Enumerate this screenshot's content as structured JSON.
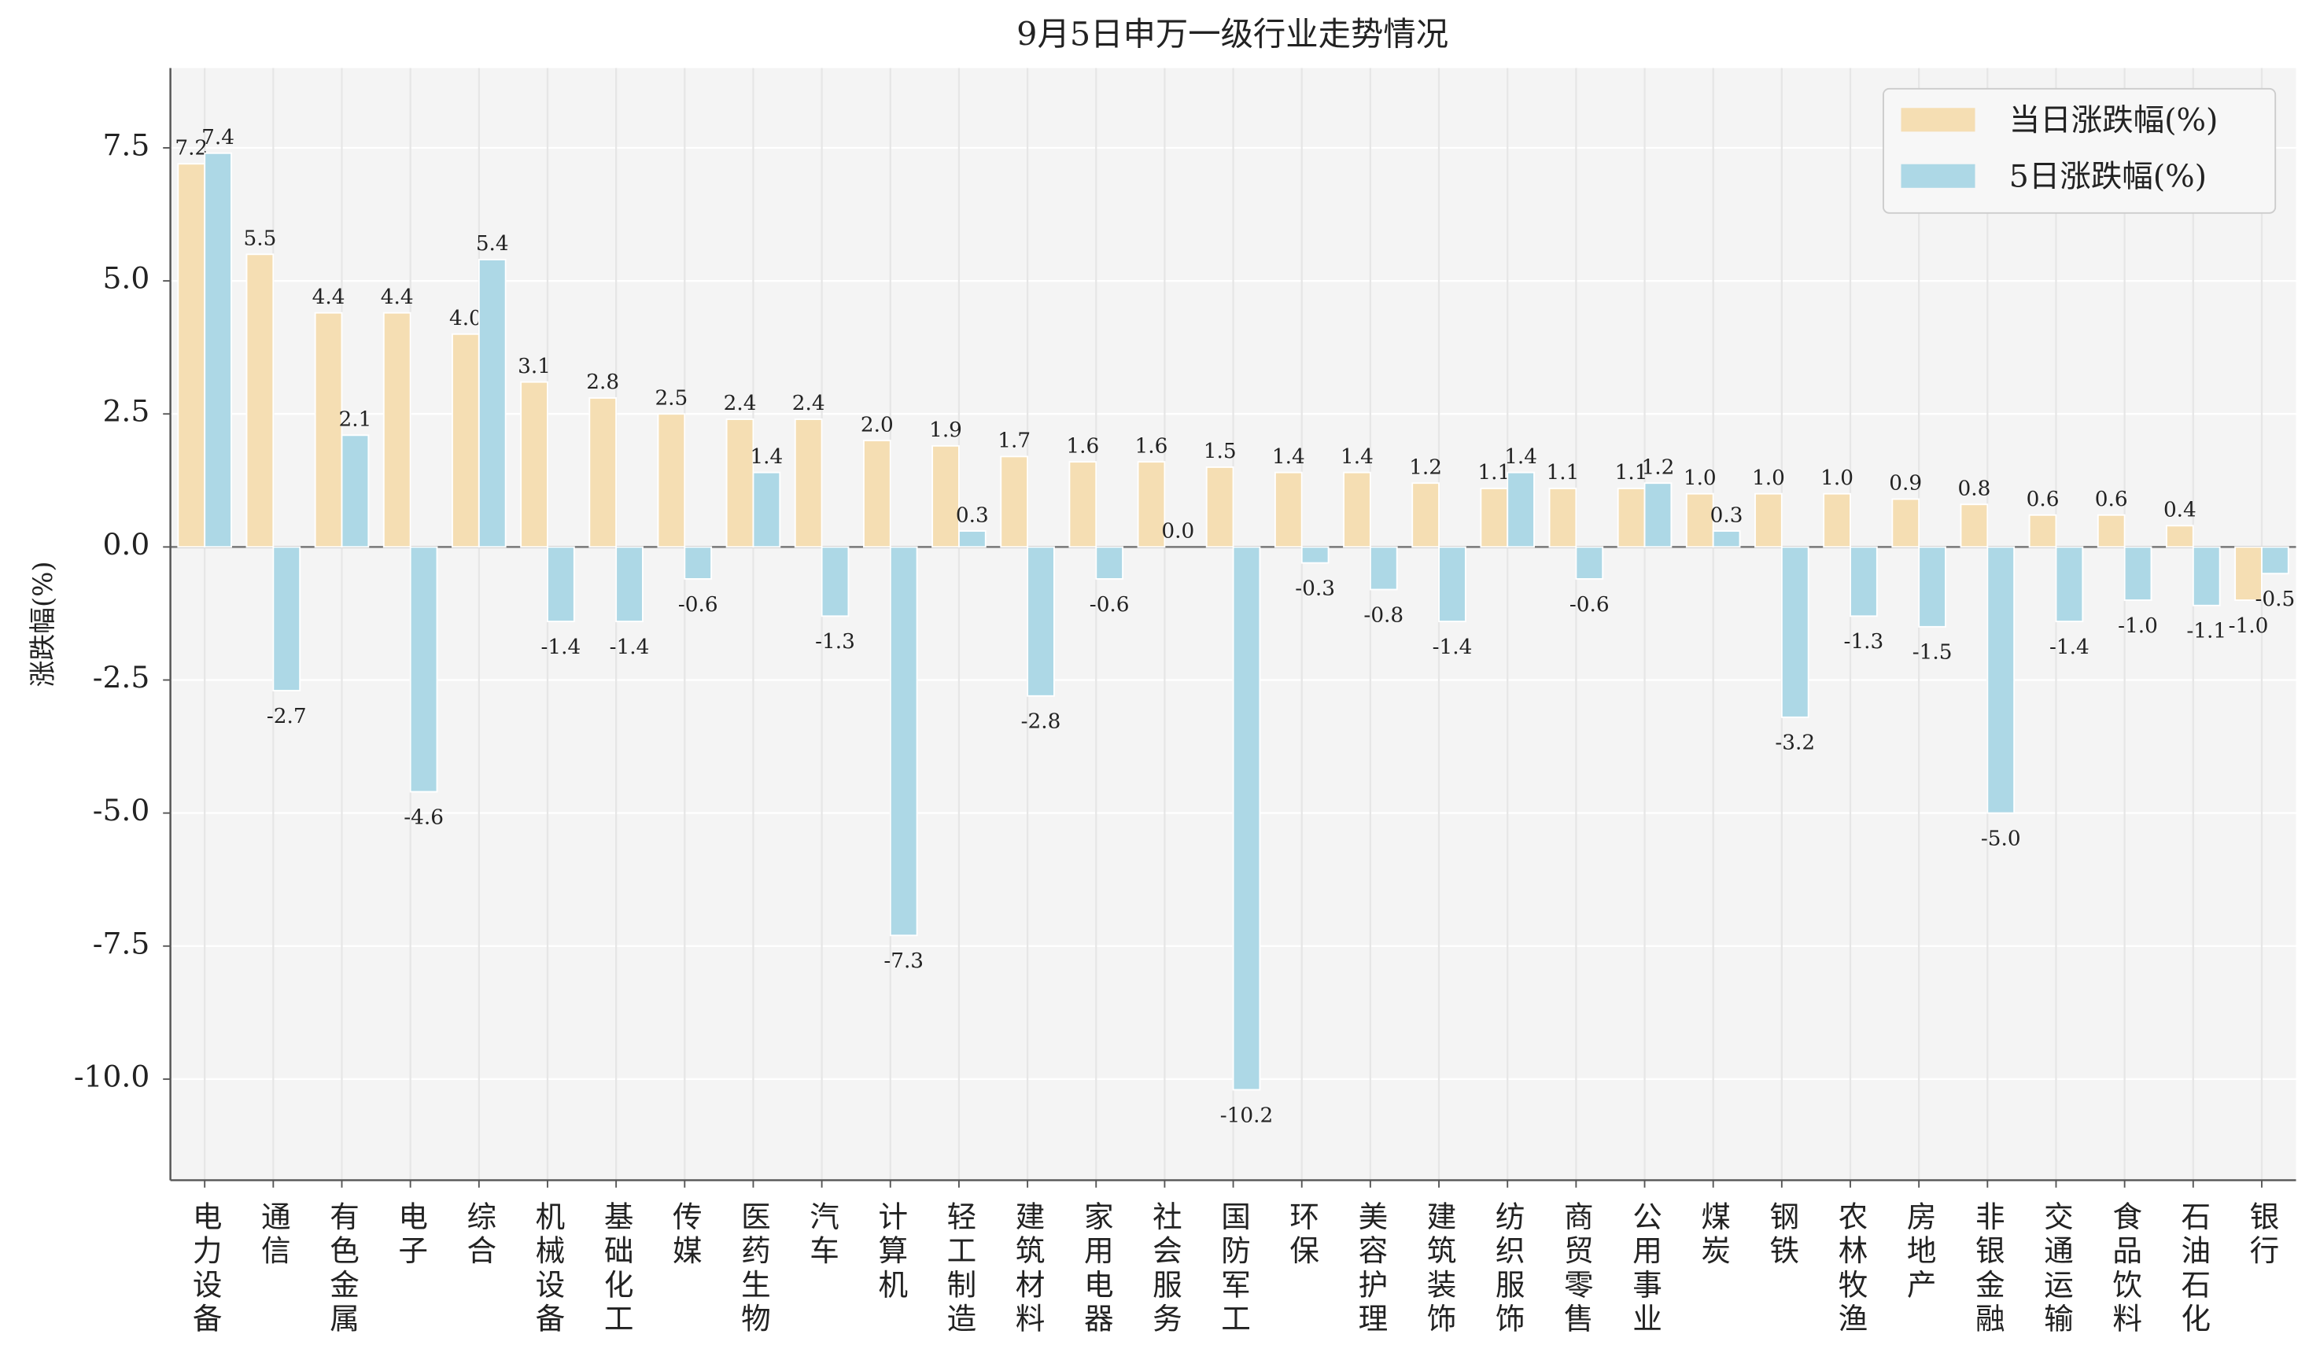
{
  "chart_data": {
    "type": "bar",
    "title": "9月5日申万一级行业走势情况",
    "y_label": "涨跌幅(%)",
    "categories": [
      "电力设备",
      "通信",
      "有色金属",
      "电子",
      "综合",
      "机械设备",
      "基础化工",
      "传媒",
      "医药生物",
      "汽车",
      "计算机",
      "轻工制造",
      "建筑材料",
      "家用电器",
      "社会服务",
      "国防军工",
      "环保",
      "美容护理",
      "建筑装饰",
      "纺织服饰",
      "商贸零售",
      "公用事业",
      "煤炭",
      "钢铁",
      "农林牧渔",
      "房地产",
      "非银金融",
      "交通运输",
      "食品饮料",
      "石油石化",
      "银行"
    ],
    "series": [
      {
        "name": "当日涨跌幅(%)",
        "color": "#f5deb3",
        "values": [
          7.2,
          5.5,
          4.4,
          4.4,
          4.0,
          3.1,
          2.8,
          2.5,
          2.4,
          2.4,
          2.0,
          1.9,
          1.7,
          1.6,
          1.6,
          1.5,
          1.4,
          1.4,
          1.2,
          1.1,
          1.1,
          1.1,
          1.0,
          1.0,
          1.0,
          0.9,
          0.8,
          0.6,
          0.6,
          0.4,
          -1.0
        ],
        "value_labels": [
          "7.2",
          "5.5",
          "4.4",
          "4.4",
          "4.0",
          "3.1",
          "2.8",
          "2.5",
          "2.4",
          "2.4",
          "2.0",
          "1.9",
          "1.7",
          "1.6",
          "1.6",
          "1.5",
          "1.4",
          "1.4",
          "1.2",
          "1.1",
          "1.1",
          "1.1",
          "1.0",
          "1.0",
          "1.0",
          "0.9",
          "0.8",
          "0.6",
          "0.6",
          "0.4",
          "-1.0"
        ]
      },
      {
        "name": "5日涨跌幅(%)",
        "color": "#add8e6",
        "values": [
          7.4,
          -2.7,
          2.1,
          -4.6,
          5.4,
          -1.4,
          -1.4,
          -0.6,
          1.4,
          -1.3,
          -7.3,
          0.3,
          -2.8,
          -0.6,
          0.0,
          -10.2,
          -0.3,
          -0.8,
          -1.4,
          1.4,
          -0.6,
          1.2,
          0.3,
          -3.2,
          -1.3,
          -1.5,
          -5.0,
          -1.4,
          -1.0,
          -1.1,
          -0.5
        ],
        "value_labels": [
          "7.4",
          "-2.7",
          "2.1",
          "-4.6",
          "5.4",
          "-1.4",
          "-1.4",
          "-0.6",
          "1.4",
          "-1.3",
          "-7.3",
          "0.3",
          "-2.8",
          "-0.6",
          "0.0",
          "-10.2",
          "-0.3",
          "-0.8",
          "-1.4",
          "1.4",
          "-0.6",
          "1.2",
          "0.3",
          "-3.2",
          "-1.3",
          "-1.5",
          "-5.0",
          "-1.4",
          "-1.0",
          "-1.1",
          "-0.5"
        ]
      }
    ],
    "ylim": [
      -11.9,
      9.0
    ],
    "yticks": [
      -2.5,
      {
        "value": -10,
        "label": "-10.0"
      },
      -7.5,
      {
        "value": -5,
        "label": "-5.0"
      },
      {
        "value": 0,
        "label": "0.0"
      },
      2.5,
      {
        "value": 5,
        "label": "5.0"
      },
      7.5
    ],
    "grid": true,
    "legend": "upper right"
  }
}
